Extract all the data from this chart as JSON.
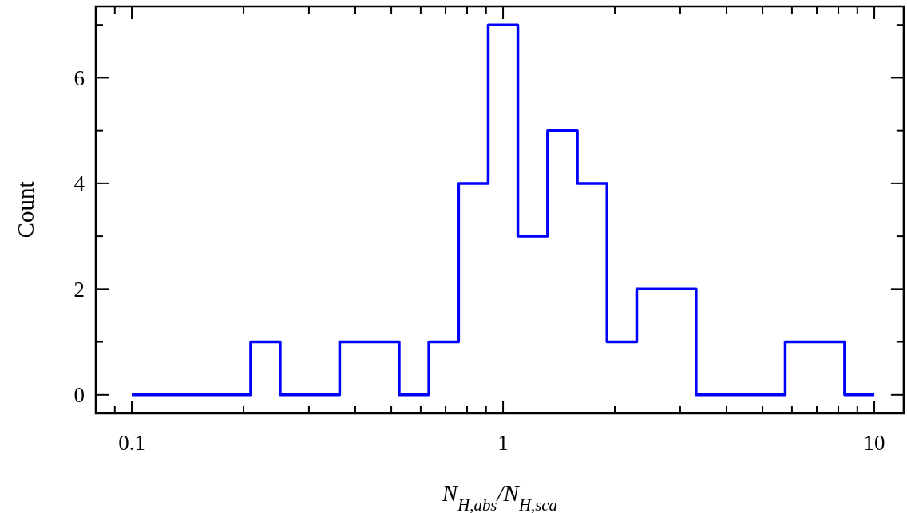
{
  "chart_data": {
    "type": "histogram",
    "xlabel": "N$_{H,abs}$/N$_{H,sca}$",
    "ylabel": "Count",
    "log": "x",
    "color": "#0000ff",
    "bins": [
      0.1,
      0.12,
      0.145,
      0.174,
      0.209,
      0.251,
      0.302,
      0.363,
      0.437,
      0.525,
      0.631,
      0.759,
      0.912,
      1.096,
      1.318,
      1.585,
      1.905,
      2.291,
      2.754,
      3.311,
      3.981,
      4.786,
      5.754,
      6.918,
      8.318,
      10
    ],
    "values": [
      0,
      0,
      0,
      0,
      1,
      0,
      0,
      1,
      1,
      0,
      1,
      4,
      7,
      3,
      5,
      4,
      1,
      2,
      2,
      0,
      0,
      0,
      1,
      1,
      0
    ],
    "xlim": [
      0.08,
      12
    ],
    "ylim": [
      -0.35,
      7.35
    ],
    "xticks": [
      {
        "value": 0.09,
        "label": null
      },
      0.1,
      {
        "value": 0.2,
        "label": null
      },
      {
        "value": 0.3,
        "label": null
      },
      {
        "value": 0.4,
        "label": null
      },
      {
        "value": 0.5,
        "label": null
      },
      {
        "value": 0.6,
        "label": null
      },
      {
        "value": 0.7,
        "label": null
      },
      {
        "value": 0.8,
        "label": null
      },
      {
        "value": 0.9,
        "label": null
      },
      1,
      {
        "value": 2,
        "label": null
      },
      {
        "value": 3,
        "label": null
      },
      {
        "value": 4,
        "label": null
      },
      {
        "value": 5,
        "label": null
      },
      {
        "value": 6,
        "label": null
      },
      {
        "value": 7,
        "label": null
      },
      {
        "value": 8,
        "label": null
      },
      {
        "value": 9,
        "label": null
      },
      10
    ],
    "yticks": [
      0,
      {
        "value": 1,
        "label": null
      },
      2,
      {
        "value": 3,
        "label": null
      },
      4,
      {
        "value": 5,
        "label": null
      },
      6,
      {
        "value": 7,
        "label": null
      }
    ],
    "grid": false
  }
}
